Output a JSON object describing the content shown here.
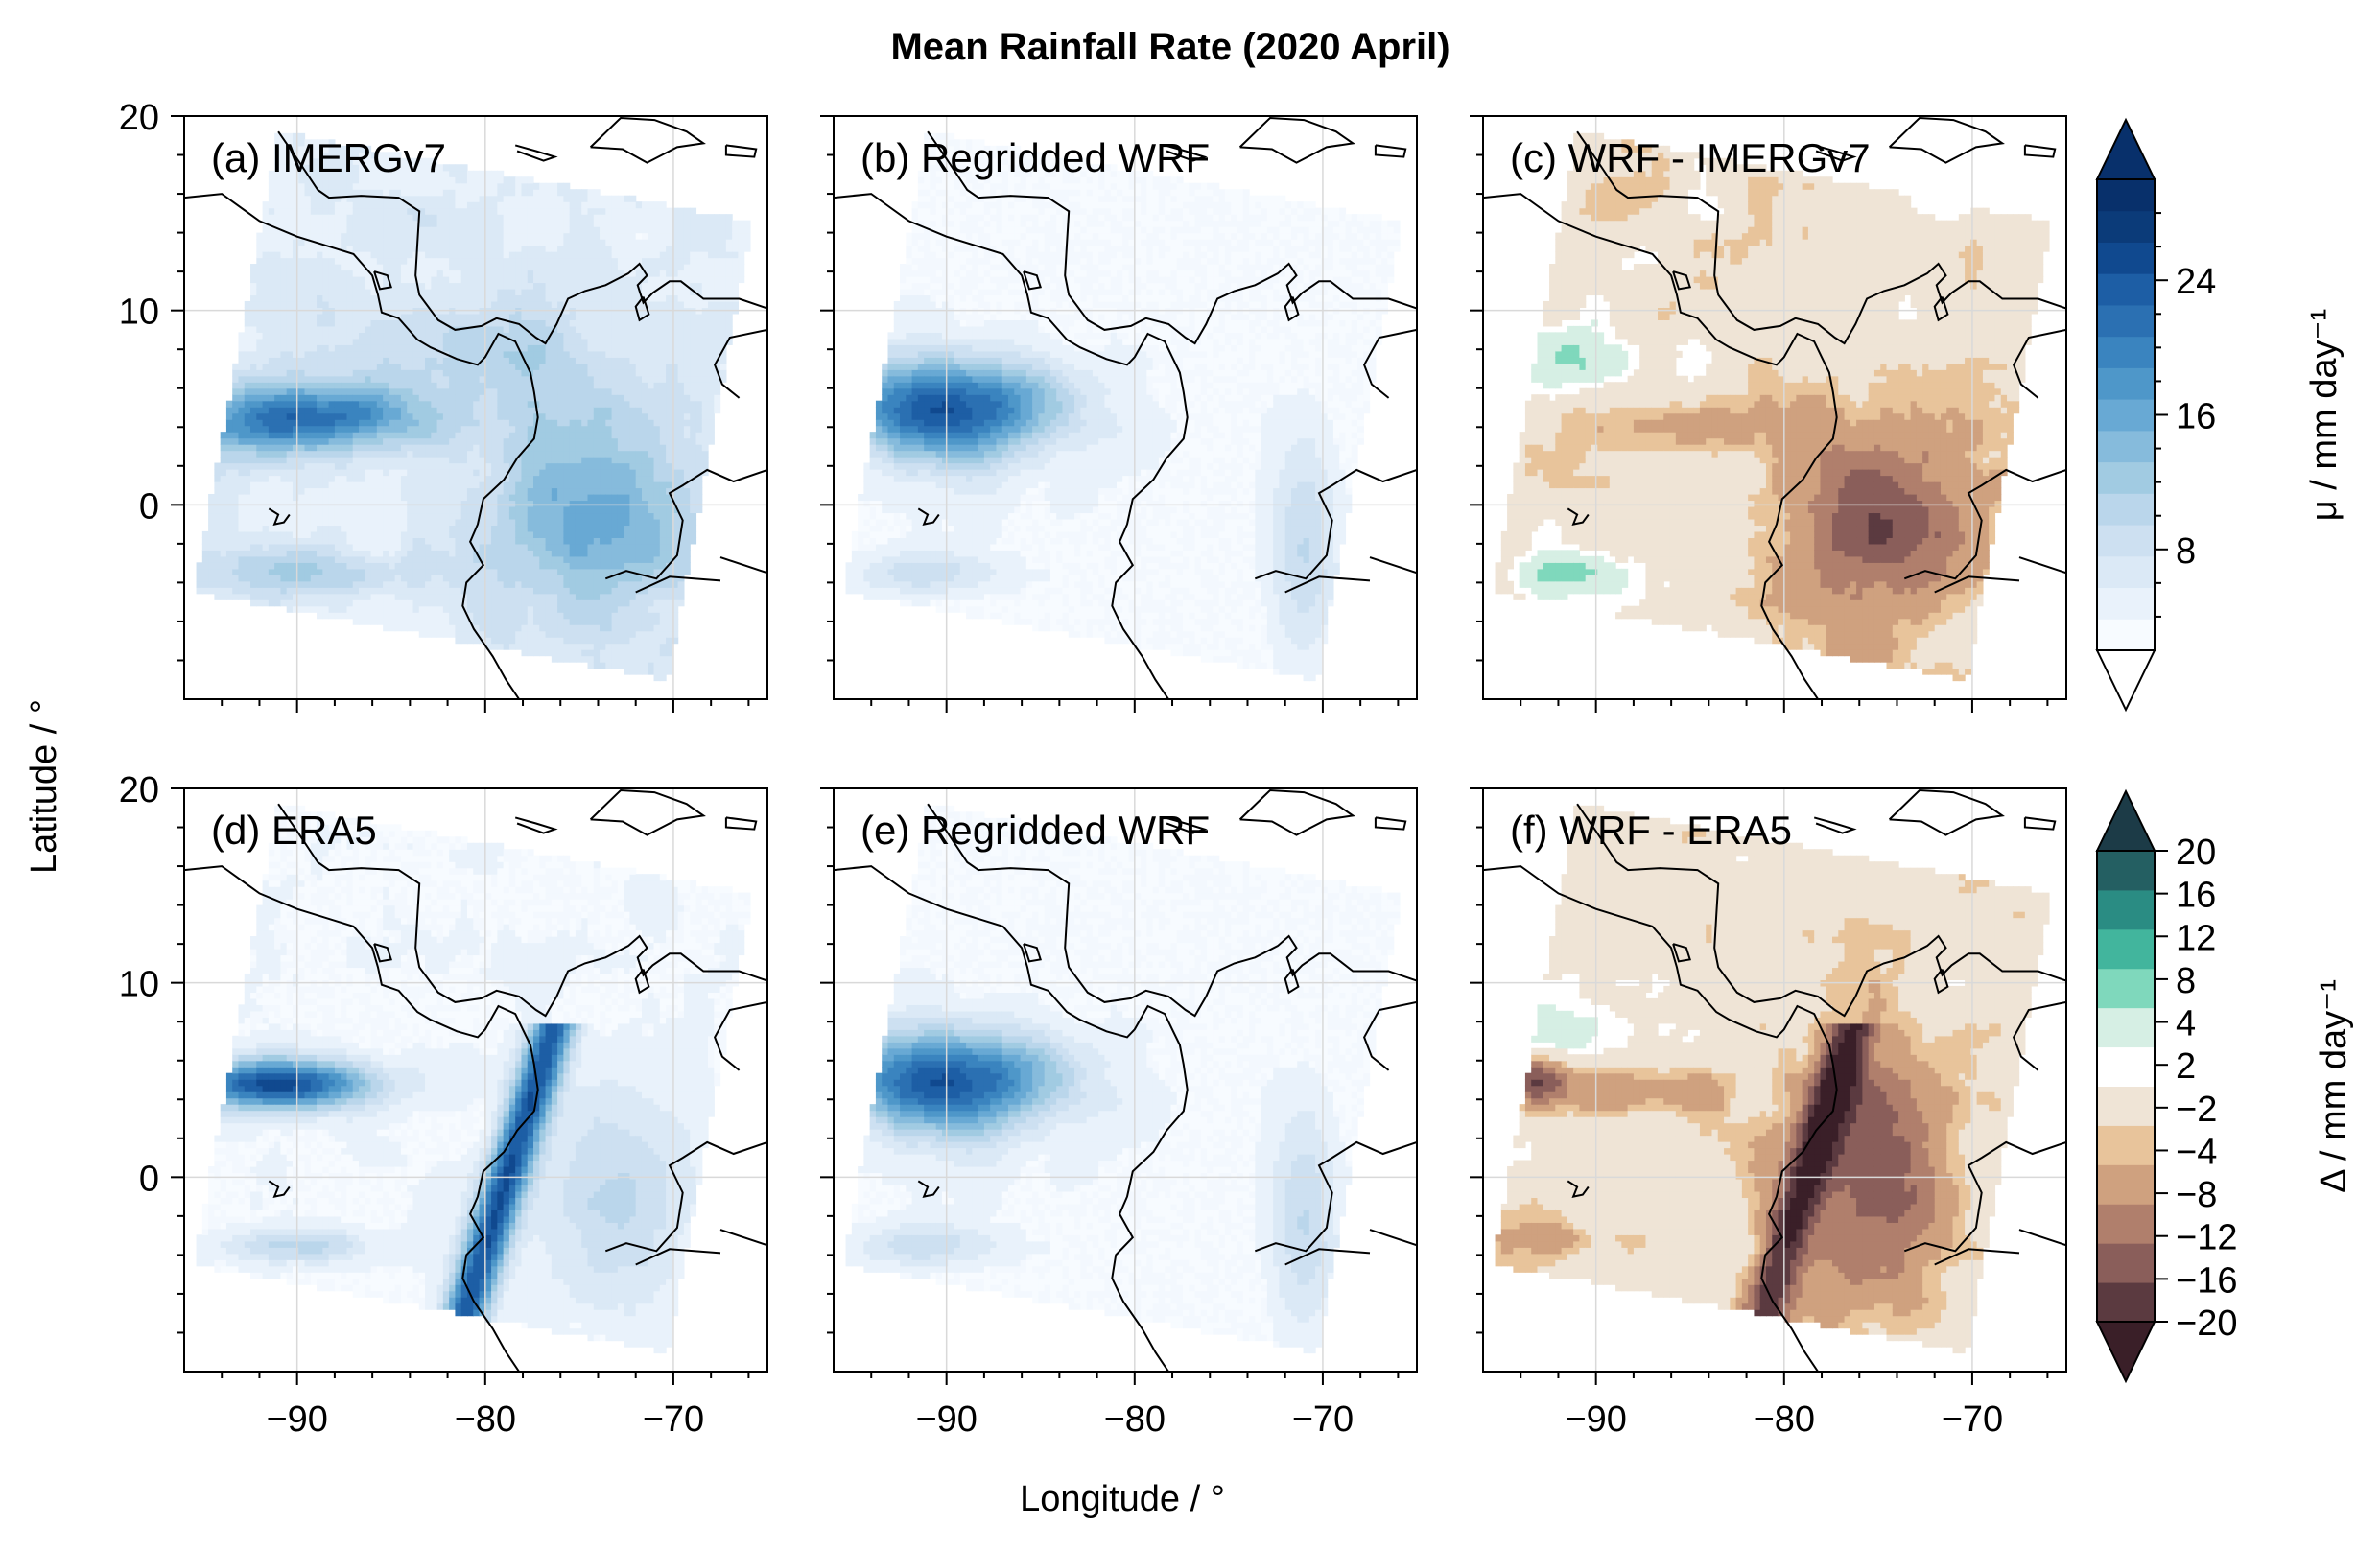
{
  "figure": {
    "title": "Mean Rainfall Rate (2020 April)",
    "xlabel": "Longitude / °",
    "ylabel": "Latitude / °"
  },
  "colors": {
    "blues": [
      "#f7fbff",
      "#e9f2fb",
      "#dbe9f6",
      "#cde0f1",
      "#bad6eb",
      "#a1cbe2",
      "#86bbdc",
      "#68a9d4",
      "#4e97c9",
      "#3a84bf",
      "#2b70b2",
      "#1d5ea5",
      "#10498f",
      "#0b3b79",
      "#08306b"
    ],
    "diverging": [
      "#3a1f28",
      "#5b3a40",
      "#8a5e5a",
      "#b07f6c",
      "#cfa17f",
      "#e8c49b",
      "#efe4d6",
      "#ffffff",
      "#d6efe4",
      "#7fd8bc",
      "#42b59d",
      "#2a8c83",
      "#245f62",
      "#1c3b47"
    ],
    "land_outline": "#000000",
    "grid": "#d9d9d9"
  },
  "panels": [
    {
      "id": "a",
      "label": "(a) IMERGv7",
      "kind": "rain",
      "source": "IMERGv7"
    },
    {
      "id": "b",
      "label": "(b) Regridded WRF",
      "kind": "rain",
      "source": "WRF"
    },
    {
      "id": "c",
      "label": "(c) WRF - IMERGv7",
      "kind": "diff",
      "source": "WRF-IMERG"
    },
    {
      "id": "d",
      "label": "(d) ERA5",
      "kind": "rain",
      "source": "ERA5"
    },
    {
      "id": "e",
      "label": "(e) Regridded WRF",
      "kind": "rain",
      "source": "WRF"
    },
    {
      "id": "f",
      "label": "(f) WRF - ERA5",
      "kind": "diff",
      "source": "WRF-ERA5"
    }
  ],
  "chart_data": [
    {
      "type": "heatmap",
      "panel": "(a) IMERGv7",
      "xlim": [
        -96,
        -65
      ],
      "ylim": [
        -10,
        20
      ],
      "x_ticks": [
        "-90",
        "-80",
        "-70"
      ],
      "y_ticks": [
        "0",
        "10",
        "20"
      ],
      "value_range_mm_day": [
        0,
        28
      ],
      "features": [
        {
          "lon": -90,
          "lat": 4.5,
          "rain_mm_day": 18
        },
        {
          "lon": -73,
          "lat": 0,
          "rain_mm_day": 12
        },
        {
          "lon": -90,
          "lat": -3,
          "rain_mm_day": 6
        }
      ]
    },
    {
      "type": "heatmap",
      "panel": "(b) Regridded WRF",
      "xlim": [
        -96,
        -65
      ],
      "ylim": [
        -10,
        20
      ],
      "value_range_mm_day": [
        0,
        28
      ],
      "features": [
        {
          "lon": -90,
          "lat": 4.5,
          "rain_mm_day": 20
        },
        {
          "lon": -71,
          "lat": -3,
          "rain_mm_day": 8
        }
      ]
    },
    {
      "type": "heatmap",
      "panel": "(c) WRF - IMERGv7",
      "xlim": [
        -96,
        -65
      ],
      "ylim": [
        -10,
        20
      ],
      "value_range_mm_day": [
        -20,
        20
      ],
      "features": [
        {
          "lon": -92,
          "lat": 7,
          "diff_mm_day": 6
        },
        {
          "lon": -74,
          "lat": 0,
          "diff_mm_day": -10
        },
        {
          "lon": -92,
          "lat": -3.5,
          "diff_mm_day": 8
        }
      ]
    },
    {
      "type": "heatmap",
      "panel": "(d) ERA5",
      "xlim": [
        -96,
        -65
      ],
      "ylim": [
        -10,
        20
      ],
      "value_range_mm_day": [
        0,
        28
      ],
      "features": [
        {
          "lon": -92,
          "lat": 4.8,
          "rain_mm_day": 24
        },
        {
          "lon": -77,
          "lat": 3,
          "rain_mm_day": 22
        },
        {
          "lon": -90,
          "lat": -3,
          "rain_mm_day": 7
        }
      ]
    },
    {
      "type": "heatmap",
      "panel": "(e) Regridded WRF",
      "xlim": [
        -96,
        -65
      ],
      "ylim": [
        -10,
        20
      ],
      "value_range_mm_day": [
        0,
        28
      ],
      "features": [
        {
          "lon": -90,
          "lat": 4.5,
          "rain_mm_day": 19
        },
        {
          "lon": -71,
          "lat": -2,
          "rain_mm_day": 8
        }
      ]
    },
    {
      "type": "heatmap",
      "panel": "(f) WRF - ERA5",
      "xlim": [
        -96,
        -65
      ],
      "ylim": [
        -10,
        20
      ],
      "value_range_mm_day": [
        -20,
        20
      ],
      "features": [
        {
          "lon": -92,
          "lat": 7,
          "diff_mm_day": 6
        },
        {
          "lon": -77,
          "lat": 3,
          "diff_mm_day": -18
        },
        {
          "lon": -93,
          "lat": 5,
          "diff_mm_day": -14
        },
        {
          "lon": -74,
          "lat": -2,
          "diff_mm_day": -9
        }
      ]
    }
  ],
  "colorbars": {
    "rain": {
      "label": "μ / mm day⁻¹",
      "ticks": [
        "8",
        "16",
        "24"
      ],
      "levels": [
        0,
        2,
        4,
        6,
        8,
        10,
        12,
        14,
        16,
        18,
        20,
        22,
        24,
        26,
        28,
        30
      ]
    },
    "diff": {
      "label": "Δ / mm day⁻¹",
      "ticks": [
        "20",
        "16",
        "12",
        "8",
        "4",
        "2",
        "−2",
        "−4",
        "−8",
        "−12",
        "−16",
        "−20"
      ]
    }
  }
}
